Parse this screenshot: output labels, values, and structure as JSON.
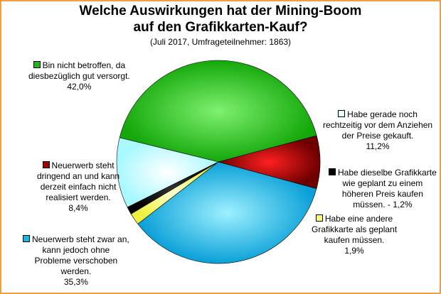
{
  "chart_data": {
    "type": "pie",
    "title": [
      "Welche Auswirkungen hat der Mining-Boom",
      "auf den Grafikkarten-Kauf?"
    ],
    "subtitle": "(Juli 2017, Umfrageteilnehmer: 1863)",
    "slices": [
      {
        "lines": [
          "Bin nicht betroffen, da",
          "diesbezüglich gut versorgt."
        ],
        "value_label": "42,0%",
        "value": 42.0,
        "color": "#1fb814"
      },
      {
        "lines": [
          "Habe gerade noch",
          "rechtzeitig vor dem Anziehen",
          "der Preise gekauft."
        ],
        "value_label": "11,2%",
        "value": 11.2,
        "color": "#e8ffff"
      },
      {
        "lines": [
          "Habe dieselbe Grafikkarte",
          "wie geplant zu einem",
          "höheren Preis kaufen"
        ],
        "last_line": "müssen. - 1,2%",
        "value": 1.2,
        "color": "#000000"
      },
      {
        "lines": [
          "Habe eine andere",
          "Grafikkarte als geplant",
          "kaufen müssen."
        ],
        "value_label": "1,9%",
        "value": 1.9,
        "color": "#f8ff70"
      },
      {
        "lines": [
          "Neuerwerb steht zwar an,",
          "kann jedoch ohne",
          "Probleme verschoben",
          "werden."
        ],
        "value_label": "35,3%",
        "value": 35.3,
        "color": "#19b8e0"
      },
      {
        "lines": [
          "Neuerwerb steht",
          "dringend an und kann",
          "derzeit einfach nicht",
          "realisiert werden."
        ],
        "value_label": "8,4%",
        "value": 8.4,
        "color": "#a00000"
      }
    ]
  }
}
